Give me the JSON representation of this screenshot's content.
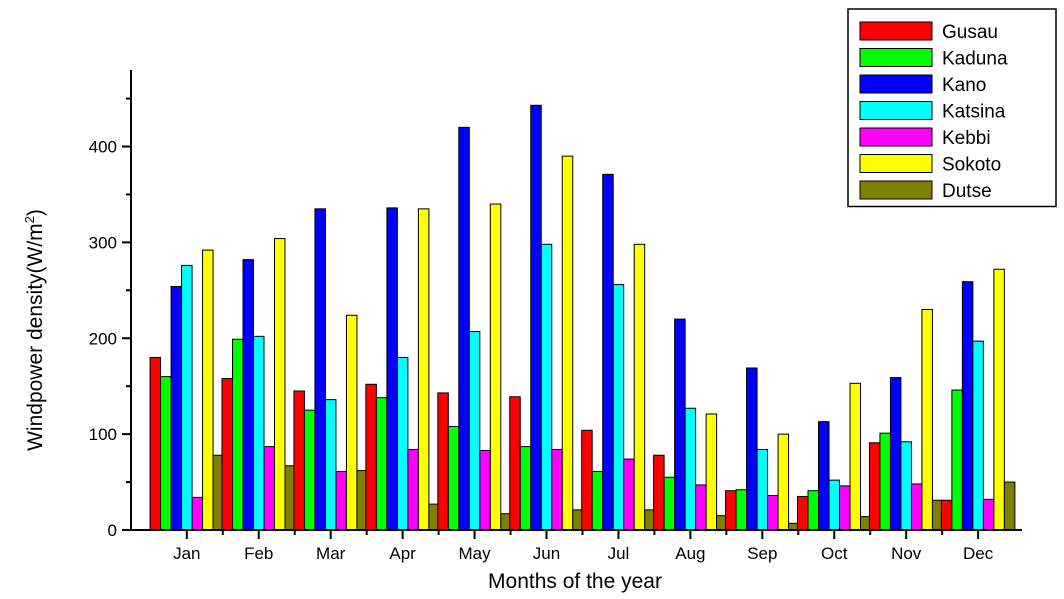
{
  "chart_data": {
    "type": "bar",
    "xlabel": "Months of the year",
    "ylabel": "Windpower density(W/m",
    "ylabel_sup": "2",
    "ylabel_suffix": ")",
    "ylim": [
      0,
      460
    ],
    "yticks": [
      0,
      100,
      200,
      300,
      400
    ],
    "legend_position": "top-right",
    "categories": [
      "Jan",
      "Feb",
      "Mar",
      "Apr",
      "May",
      "Jun",
      "Jul",
      "Aug",
      "Sep",
      "Oct",
      "Nov",
      "Dec"
    ],
    "series": [
      {
        "name": "Gusau",
        "color": "#ff0000",
        "values": [
          180,
          158,
          145,
          152,
          143,
          139,
          104,
          78,
          41,
          35,
          91,
          31
        ]
      },
      {
        "name": "Kaduna",
        "color": "#00ff00",
        "values": [
          160,
          199,
          125,
          138,
          108,
          87,
          61,
          55,
          42,
          41,
          101,
          146
        ]
      },
      {
        "name": "Kano",
        "color": "#0000ff",
        "values": [
          254,
          282,
          335,
          336,
          420,
          443,
          371,
          220,
          169,
          113,
          159,
          259
        ]
      },
      {
        "name": "Katsina",
        "color": "#00ffff",
        "values": [
          276,
          202,
          136,
          180,
          207,
          298,
          256,
          127,
          84,
          52,
          92,
          197
        ]
      },
      {
        "name": "Kebbi",
        "color": "#ff00ff",
        "values": [
          34,
          87,
          61,
          84,
          83,
          84,
          74,
          47,
          36,
          46,
          48,
          32
        ]
      },
      {
        "name": "Sokoto",
        "color": "#ffff00",
        "values": [
          292,
          304,
          224,
          335,
          340,
          390,
          298,
          121,
          100,
          153,
          230,
          272
        ]
      },
      {
        "name": "Dutse",
        "color": "#808000",
        "values": [
          78,
          67,
          62,
          27,
          17,
          21,
          21,
          15,
          7,
          14,
          31,
          50
        ]
      }
    ]
  }
}
